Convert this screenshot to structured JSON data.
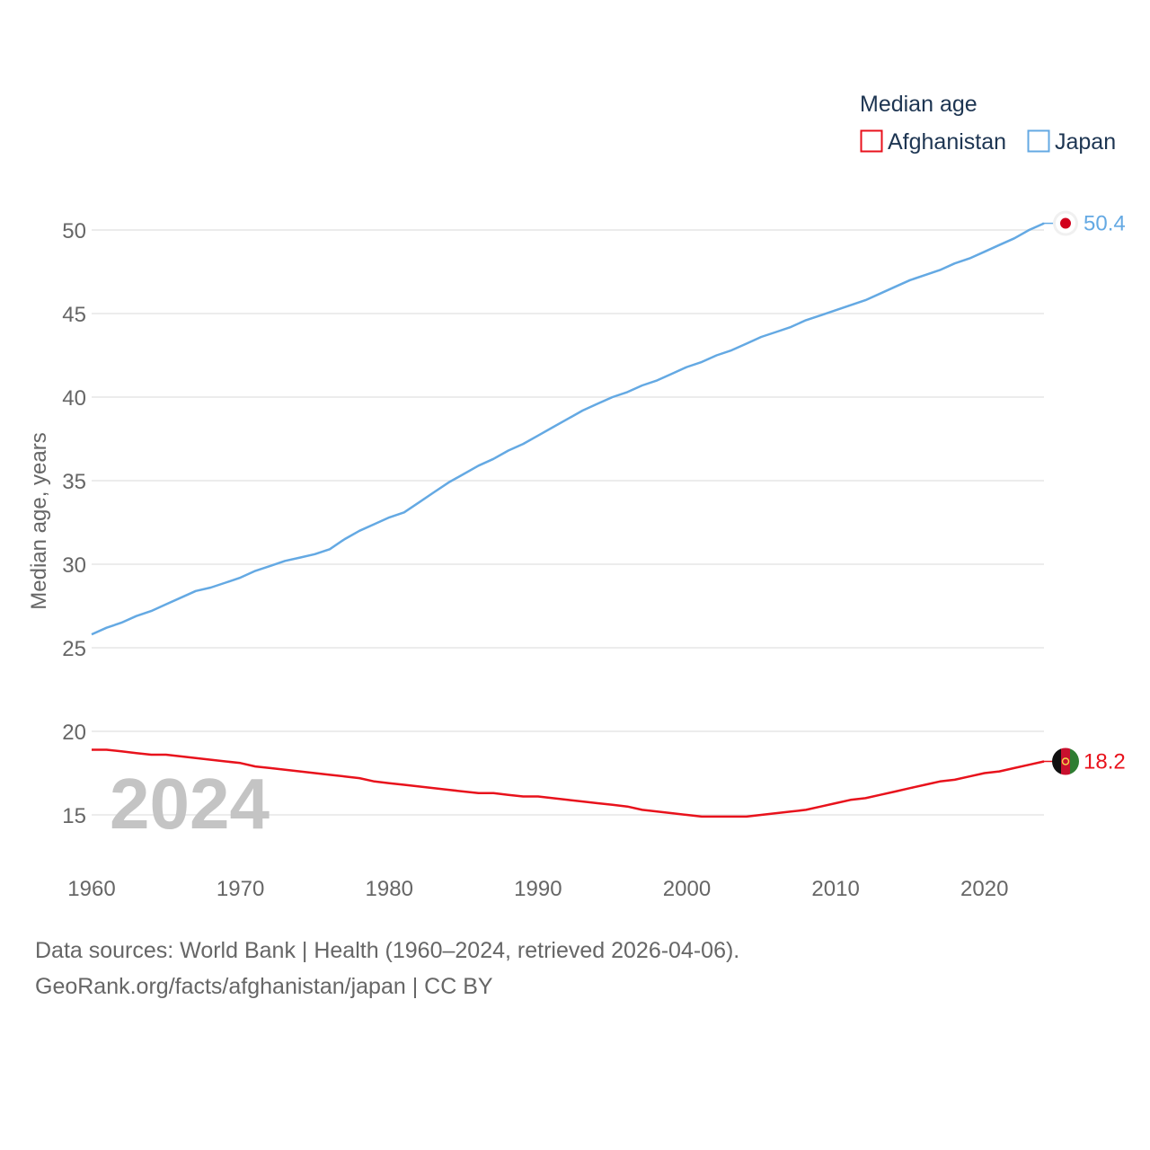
{
  "chart_data": {
    "type": "line",
    "title": "Median age",
    "xlabel": "",
    "ylabel": "Median age, years",
    "xlim": [
      1960,
      2024
    ],
    "ylim": [
      13.5,
      51.5
    ],
    "x_ticks": [
      1960,
      1970,
      1980,
      1990,
      2000,
      2010,
      2020
    ],
    "y_ticks": [
      15,
      20,
      25,
      30,
      35,
      40,
      45,
      50
    ],
    "grid": true,
    "legend_position": "top-right",
    "current_year": "2024",
    "series": [
      {
        "name": "Afghanistan",
        "color": "#e8121c",
        "end_label": "18.2",
        "flag": "afghanistan-flag-icon",
        "x": [
          1960,
          1961,
          1962,
          1963,
          1964,
          1965,
          1966,
          1967,
          1968,
          1969,
          1970,
          1971,
          1972,
          1973,
          1974,
          1975,
          1976,
          1977,
          1978,
          1979,
          1980,
          1981,
          1982,
          1983,
          1984,
          1985,
          1986,
          1987,
          1988,
          1989,
          1990,
          1991,
          1992,
          1993,
          1994,
          1995,
          1996,
          1997,
          1998,
          1999,
          2000,
          2001,
          2002,
          2003,
          2004,
          2005,
          2006,
          2007,
          2008,
          2009,
          2010,
          2011,
          2012,
          2013,
          2014,
          2015,
          2016,
          2017,
          2018,
          2019,
          2020,
          2021,
          2022,
          2023,
          2024
        ],
        "values": [
          18.9,
          18.9,
          18.8,
          18.7,
          18.6,
          18.6,
          18.5,
          18.4,
          18.3,
          18.2,
          18.1,
          17.9,
          17.8,
          17.7,
          17.6,
          17.5,
          17.4,
          17.3,
          17.2,
          17.0,
          16.9,
          16.8,
          16.7,
          16.6,
          16.5,
          16.4,
          16.3,
          16.3,
          16.2,
          16.1,
          16.1,
          16.0,
          15.9,
          15.8,
          15.7,
          15.6,
          15.5,
          15.3,
          15.2,
          15.1,
          15.0,
          14.9,
          14.9,
          14.9,
          14.9,
          15.0,
          15.1,
          15.2,
          15.3,
          15.5,
          15.7,
          15.9,
          16.0,
          16.2,
          16.4,
          16.6,
          16.8,
          17.0,
          17.1,
          17.3,
          17.5,
          17.6,
          17.8,
          18.0,
          18.2
        ]
      },
      {
        "name": "Japan",
        "color": "#64a9e3",
        "end_label": "50.4",
        "flag": "japan-flag-icon",
        "x": [
          1960,
          1961,
          1962,
          1963,
          1964,
          1965,
          1966,
          1967,
          1968,
          1969,
          1970,
          1971,
          1972,
          1973,
          1974,
          1975,
          1976,
          1977,
          1978,
          1979,
          1980,
          1981,
          1982,
          1983,
          1984,
          1985,
          1986,
          1987,
          1988,
          1989,
          1990,
          1991,
          1992,
          1993,
          1994,
          1995,
          1996,
          1997,
          1998,
          1999,
          2000,
          2001,
          2002,
          2003,
          2004,
          2005,
          2006,
          2007,
          2008,
          2009,
          2010,
          2011,
          2012,
          2013,
          2014,
          2015,
          2016,
          2017,
          2018,
          2019,
          2020,
          2021,
          2022,
          2023,
          2024
        ],
        "values": [
          25.8,
          26.2,
          26.5,
          26.9,
          27.2,
          27.6,
          28.0,
          28.4,
          28.6,
          28.9,
          29.2,
          29.6,
          29.9,
          30.2,
          30.4,
          30.6,
          30.9,
          31.5,
          32.0,
          32.4,
          32.8,
          33.1,
          33.7,
          34.3,
          34.9,
          35.4,
          35.9,
          36.3,
          36.8,
          37.2,
          37.7,
          38.2,
          38.7,
          39.2,
          39.6,
          40.0,
          40.3,
          40.7,
          41.0,
          41.4,
          41.8,
          42.1,
          42.5,
          42.8,
          43.2,
          43.6,
          43.9,
          44.2,
          44.6,
          44.9,
          45.2,
          45.5,
          45.8,
          46.2,
          46.6,
          47.0,
          47.3,
          47.6,
          48.0,
          48.3,
          48.7,
          49.1,
          49.5,
          50.0,
          50.4
        ]
      }
    ]
  },
  "footer": {
    "source": "Data sources: World Bank | Health (1960–2024, retrieved 2026-04-06).",
    "url": "GeoRank.org/facts/afghanistan/japan | CC BY"
  }
}
